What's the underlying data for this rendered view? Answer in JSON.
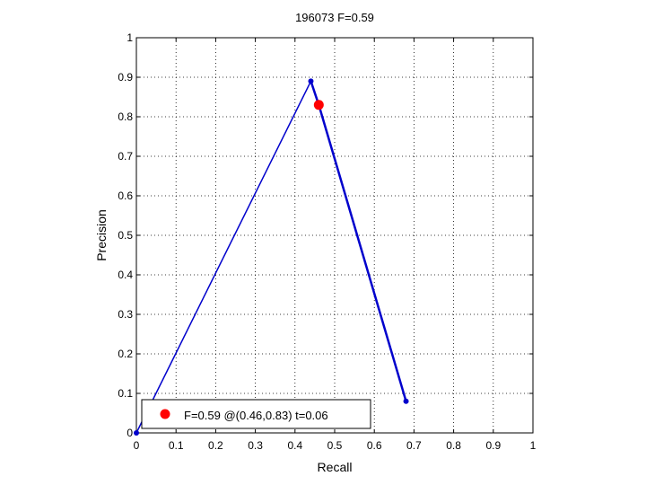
{
  "chart_data": {
    "type": "line",
    "title": "196073 F=0.59",
    "xlabel": "Recall",
    "ylabel": "Precision",
    "xlim": [
      0,
      1
    ],
    "ylim": [
      0,
      1
    ],
    "xticks": [
      0,
      0.1,
      0.2,
      0.3,
      0.4,
      0.5,
      0.6,
      0.7,
      0.8,
      0.9,
      1
    ],
    "yticks": [
      0,
      0.1,
      0.2,
      0.3,
      0.4,
      0.5,
      0.6,
      0.7,
      0.8,
      0.9,
      1
    ],
    "x_tick_labels": [
      "0",
      "0.1",
      "0.2",
      "0.3",
      "0.4",
      "0.5",
      "0.6",
      "0.7",
      "0.8",
      "0.9",
      "1"
    ],
    "y_tick_labels": [
      "0",
      "0.1",
      "0.2",
      "0.3",
      "0.4",
      "0.5",
      "0.6",
      "0.7",
      "0.8",
      "0.9",
      "1"
    ],
    "grid": true,
    "legend_position": "bottom-left",
    "series": [
      {
        "color": "#0000cc",
        "points": [
          [
            0,
            0
          ],
          [
            0.44,
            0.89
          ],
          [
            0.46,
            0.83
          ],
          [
            0.68,
            0.08
          ]
        ]
      }
    ],
    "best_point": {
      "x": 0.46,
      "y": 0.83,
      "color": "#ff0000",
      "label": "F=0.59 @(0.46,0.83) t=0.06"
    }
  }
}
